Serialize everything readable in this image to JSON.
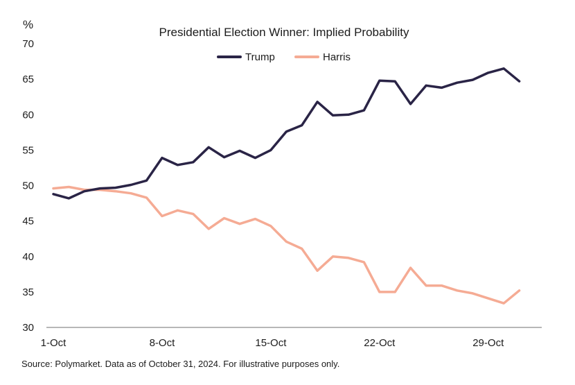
{
  "chart_data": {
    "type": "line",
    "title": "Presidential Election Winner: Implied Probability",
    "y_unit_label": "%",
    "source": "Source: Polymarket. Data as of October 31, 2024. For illustrative purposes only.",
    "x": [
      1,
      2,
      3,
      4,
      5,
      6,
      7,
      8,
      9,
      10,
      11,
      12,
      13,
      14,
      15,
      16,
      17,
      18,
      19,
      20,
      21,
      22,
      23,
      24,
      25,
      26,
      27,
      28,
      29,
      30,
      31
    ],
    "x_ticks": [
      {
        "x": 1,
        "label": "1-Oct"
      },
      {
        "x": 8,
        "label": "8-Oct"
      },
      {
        "x": 15,
        "label": "15-Oct"
      },
      {
        "x": 22,
        "label": "22-Oct"
      },
      {
        "x": 29,
        "label": "29-Oct"
      }
    ],
    "y_ticks": [
      30,
      35,
      40,
      45,
      50,
      55,
      60,
      65,
      70
    ],
    "ylim": [
      30,
      70
    ],
    "xlim": [
      1,
      32
    ],
    "legend": "top-center",
    "grid": false,
    "series": [
      {
        "name": "Trump",
        "color": "#2a2446",
        "values": [
          48.8,
          48.2,
          49.2,
          49.6,
          49.7,
          50.1,
          50.7,
          53.9,
          52.9,
          53.3,
          55.4,
          54.0,
          54.9,
          53.9,
          55.0,
          57.6,
          58.5,
          61.8,
          59.9,
          60.0,
          60.6,
          64.8,
          64.7,
          61.5,
          64.1,
          63.8,
          64.5,
          64.9,
          65.9,
          66.5,
          64.7
        ]
      },
      {
        "name": "Harris",
        "color": "#f5ab94",
        "values": [
          49.6,
          49.8,
          49.4,
          49.4,
          49.2,
          48.9,
          48.3,
          45.7,
          46.5,
          46.0,
          43.9,
          45.4,
          44.6,
          45.3,
          44.3,
          42.1,
          41.1,
          38.0,
          40.0,
          39.8,
          39.2,
          35.0,
          35.0,
          38.4,
          35.9,
          35.9,
          35.2,
          34.8,
          34.1,
          33.4,
          35.2
        ]
      }
    ]
  }
}
